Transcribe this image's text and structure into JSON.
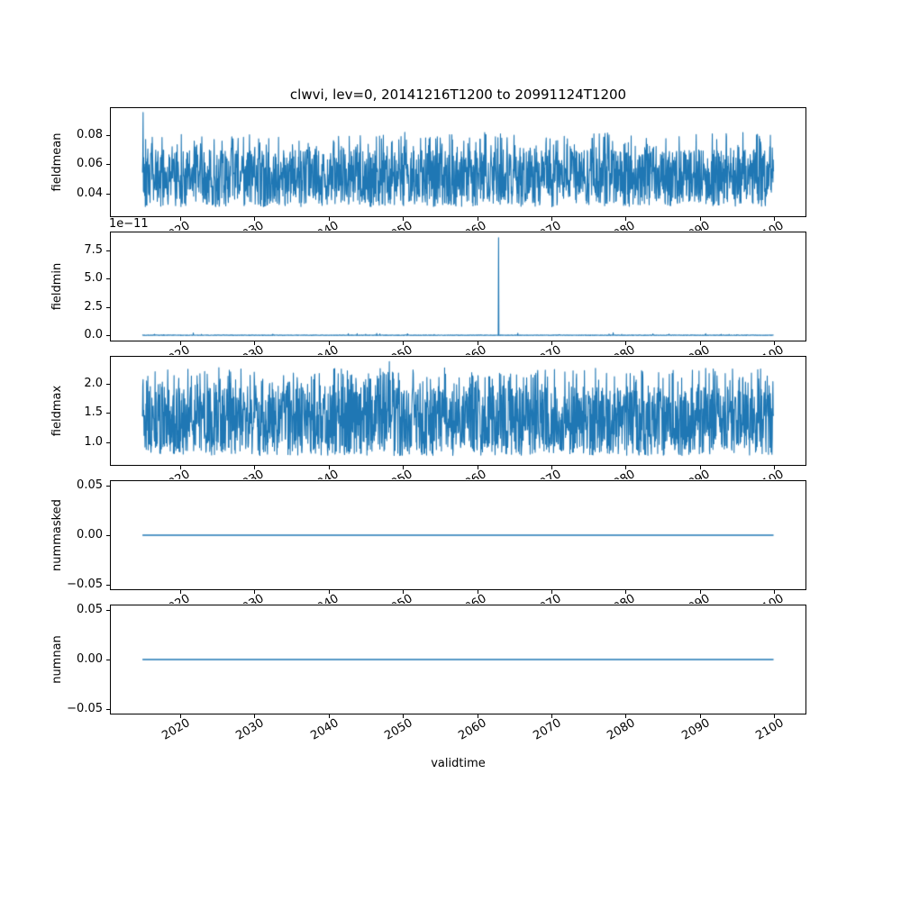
{
  "figure": {
    "title": "clwvi, lev=0, 20141216T1200 to 20991124T1200",
    "xlabel": "validtime",
    "line_color": "#1f77b4",
    "axis_color": "#000000",
    "background": "#ffffff",
    "x": {
      "lim": [
        2010.7,
        2104.2
      ],
      "start": 2014.96,
      "end": 2099.9,
      "ticks": [
        2020,
        2030,
        2040,
        2050,
        2060,
        2070,
        2080,
        2090,
        2100
      ],
      "tick_labels": [
        "2020",
        "2030",
        "2040",
        "2050",
        "2060",
        "2070",
        "2080",
        "2090",
        "2100"
      ]
    }
  },
  "chart_data": [
    {
      "type": "line",
      "name": "fieldmean",
      "ylabel": "fieldmean",
      "ylim": [
        0.0245,
        0.0985
      ],
      "y_ticks": [
        0.04,
        0.06,
        0.08
      ],
      "y_tick_labels": [
        "0.04",
        "0.06",
        "0.08"
      ],
      "gen": {
        "kind": "noise",
        "n": 2000,
        "seed": 42,
        "band": [
          0.031,
          0.07
        ],
        "peak_p": 0.08,
        "peak_max": 0.012,
        "spikes": [
          {
            "x": 2015.05,
            "y": 0.0955
          }
        ]
      }
    },
    {
      "type": "line",
      "name": "fieldmin",
      "ylabel": "fieldmin",
      "offset_text": "1e−11",
      "ylim": [
        -4.5e-12,
        9.05e-11
      ],
      "y_ticks": [
        0.0,
        2.5e-11,
        5e-11,
        7.5e-11
      ],
      "y_tick_labels": [
        "0.0",
        "2.5",
        "5.0",
        "7.5"
      ],
      "gen": {
        "kind": "noise",
        "n": 2000,
        "seed": 7,
        "band": [
          0.0,
          4e-13
        ],
        "peak_p": 0.01,
        "peak_max": 1.2e-12,
        "spikes": [
          {
            "x": 2062.9,
            "y": 8.6e-11
          },
          {
            "x": 2021.8,
            "y": 2.2e-12
          },
          {
            "x": 2046.5,
            "y": 1.8e-12
          },
          {
            "x": 2065.5,
            "y": 2e-12
          },
          {
            "x": 2078.3,
            "y": 2.4e-12
          }
        ]
      }
    },
    {
      "type": "line",
      "name": "fieldmax",
      "ylabel": "fieldmax",
      "ylim": [
        0.62,
        2.45
      ],
      "y_ticks": [
        1.0,
        1.5,
        2.0
      ],
      "y_tick_labels": [
        "1.0",
        "1.5",
        "2.0"
      ],
      "gen": {
        "kind": "noise",
        "n": 2000,
        "seed": 13,
        "band": [
          0.78,
          1.95
        ],
        "peak_p": 0.1,
        "peak_max": 0.32,
        "spikes": [
          {
            "x": 2048.2,
            "y": 2.37
          }
        ]
      }
    },
    {
      "type": "line",
      "name": "nummasked",
      "ylabel": "nummasked",
      "ylim": [
        -0.055,
        0.055
      ],
      "y_ticks": [
        -0.05,
        0.0,
        0.05
      ],
      "y_tick_labels": [
        "−0.05",
        "0.00",
        "0.05"
      ],
      "gen": {
        "kind": "constant",
        "value": 0
      }
    },
    {
      "type": "line",
      "name": "numnan",
      "ylabel": "numnan",
      "ylim": [
        -0.055,
        0.055
      ],
      "y_ticks": [
        -0.05,
        0.0,
        0.05
      ],
      "y_tick_labels": [
        "−0.05",
        "0.00",
        "0.05"
      ],
      "gen": {
        "kind": "constant",
        "value": 0
      }
    }
  ]
}
